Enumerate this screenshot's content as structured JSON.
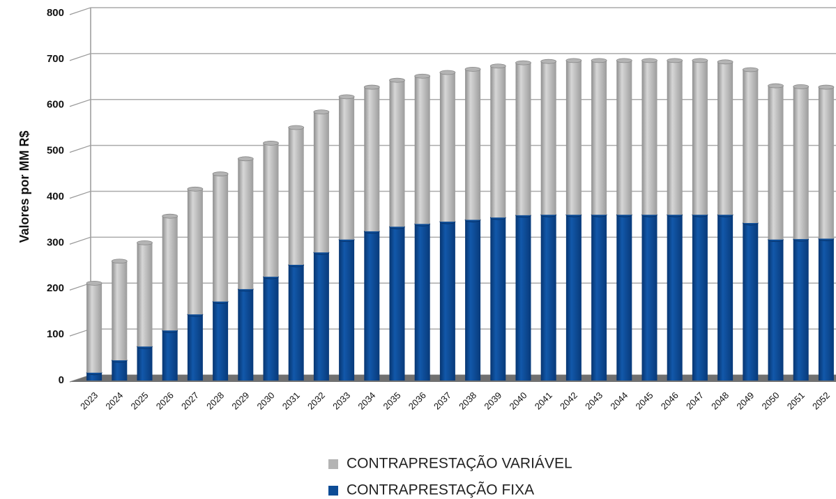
{
  "chart_data": {
    "type": "bar",
    "stacked": true,
    "y_label": "Valores por MM R$",
    "categories": [
      "2023",
      "2024",
      "2025",
      "2026",
      "2027",
      "2028",
      "2029",
      "2030",
      "2031",
      "2032",
      "2033",
      "2034",
      "2035",
      "2036",
      "2037",
      "2038",
      "2039",
      "2040",
      "2041",
      "2042",
      "2043",
      "2044",
      "2045",
      "2046",
      "2047",
      "2048",
      "2049",
      "2050",
      "2051",
      "2052"
    ],
    "series": [
      {
        "name": "CONTRAPRESTAÇÃO VARIÁVEL",
        "color": "#b4b4b4",
        "values": [
          195,
          216,
          226,
          249,
          273,
          278,
          284,
          291,
          299,
          306,
          311,
          314,
          319,
          322,
          325,
          328,
          330,
          332,
          334,
          336,
          336,
          336,
          336,
          336,
          336,
          333,
          334,
          335,
          332,
          330
        ]
      },
      {
        "name": "CONTRAPRESTAÇÃO FIXA",
        "color": "#0d4c96",
        "values": [
          17,
          44,
          74,
          109,
          144,
          172,
          199,
          226,
          252,
          279,
          307,
          325,
          335,
          341,
          346,
          350,
          355,
          360,
          361,
          361,
          361,
          361,
          361,
          361,
          361,
          361,
          343,
          307,
          308,
          309
        ]
      }
    ],
    "ylim": [
      0,
      800
    ],
    "yticks": [
      0,
      100,
      200,
      300,
      400,
      500,
      600,
      700,
      800
    ],
    "grid": true
  }
}
